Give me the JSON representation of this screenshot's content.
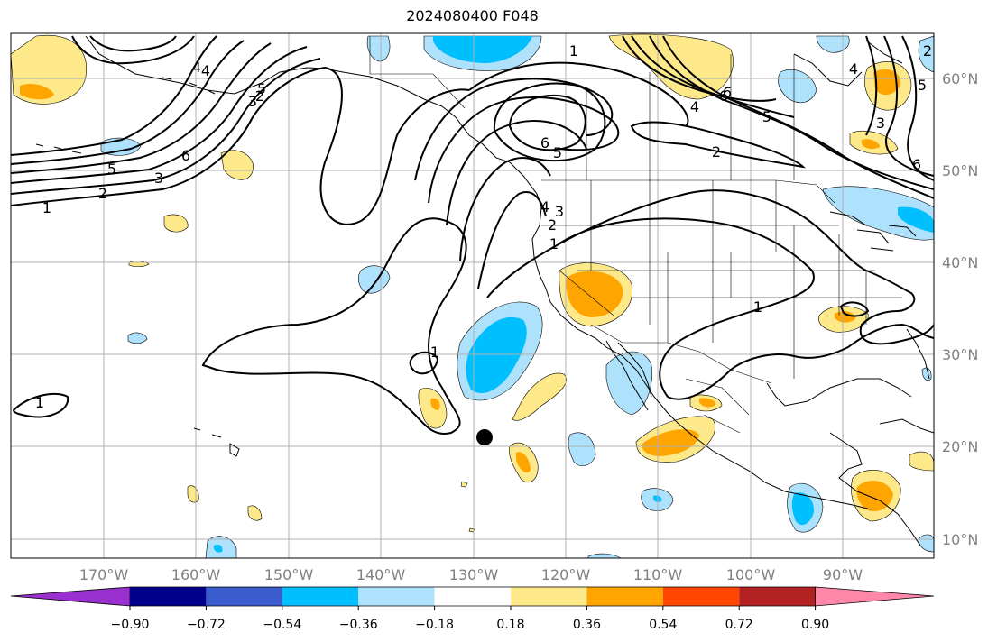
{
  "title": "2024080400 F048",
  "lon_labels": [
    "170°W",
    "160°W",
    "150°W",
    "140°W",
    "130°W",
    "120°W",
    "110°W",
    "100°W",
    "90°W"
  ],
  "lat_labels": [
    "60°N",
    "50°N",
    "40°N",
    "30°N",
    "20°N",
    "10°N"
  ],
  "colorbar": {
    "ticks": [
      "−0.90",
      "−0.72",
      "−0.54",
      "−0.36",
      "−0.18",
      "0.18",
      "0.36",
      "0.54",
      "0.72",
      "0.90"
    ],
    "colors": [
      "#9b30d0",
      "#00008b",
      "#3a5ccc",
      "#00bfff",
      "#aee1fb",
      "#ffffff",
      "#fde98a",
      "#ffa500",
      "#ff4500",
      "#b22222",
      "#ff88aa"
    ]
  },
  "contour_labels": [
    "1",
    "1",
    "2",
    "3",
    "4",
    "5",
    "6",
    "6",
    "5",
    "4",
    "3",
    "2",
    "1",
    "1",
    "1",
    "2",
    "4",
    "5",
    "6",
    "6",
    "5",
    "4",
    "3",
    "2",
    "1",
    "2",
    "3",
    "4",
    "5",
    "6"
  ],
  "marker": "black-dot"
}
